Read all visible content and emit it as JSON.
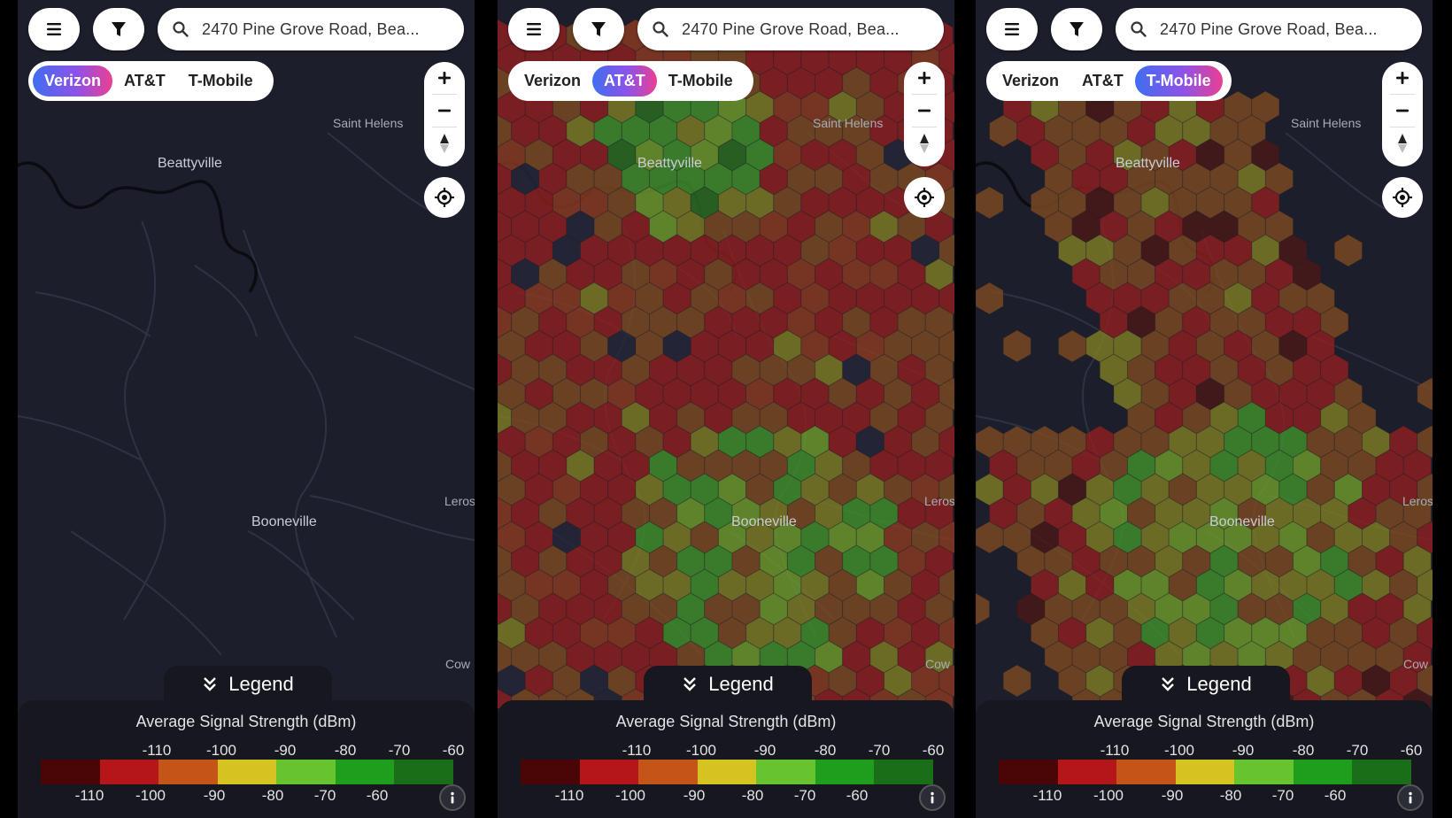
{
  "search": {
    "text": "2470 Pine Grove Road, Bea..."
  },
  "carriers": [
    "Verizon",
    "AT&T",
    "T-Mobile"
  ],
  "places": {
    "beattyville": "Beattyville",
    "booneville": "Booneville",
    "saint_helens": "Saint Helens",
    "leros": "Leros",
    "cow": "Cow"
  },
  "legend": {
    "toggle_label": "Legend",
    "title": "Average Signal Strength (dBm)",
    "top_ticks": [
      "-110",
      "-100",
      "-90",
      "-80",
      "-70",
      "-60"
    ],
    "bottom_ticks": [
      "-110",
      "-100",
      "-90",
      "-80",
      "-70",
      "-60"
    ],
    "colors": [
      "#4a0606",
      "#b5161a",
      "#c55418",
      "#d4c321",
      "#67c42e",
      "#1f9e1e",
      "#1a6e18"
    ]
  },
  "panels": [
    {
      "id": "verizon",
      "active_carrier": "Verizon",
      "coverage": "none"
    },
    {
      "id": "att",
      "active_carrier": "AT&T",
      "coverage": "full"
    },
    {
      "id": "tmobile",
      "active_carrier": "T-Mobile",
      "coverage": "partial"
    }
  ],
  "icons": {
    "menu": "menu-icon",
    "filter": "filter-icon",
    "search": "search-icon",
    "zoom_in": "plus-icon",
    "zoom_out": "minus-icon",
    "compass": "compass-icon",
    "locate": "locate-icon",
    "legend_toggle": "chevron-double-down-icon",
    "info": "info-icon"
  }
}
